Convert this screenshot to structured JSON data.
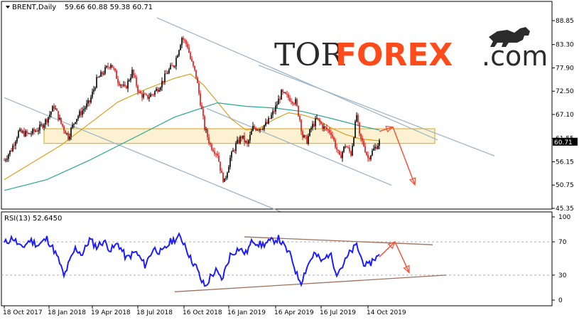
{
  "logo": {
    "part1": "TOR",
    "part2": "FOREX",
    "part3": ".com",
    "icon": "bull-icon"
  },
  "chart_data": [
    {
      "type": "candlestick",
      "title": "BRENT,Daily",
      "ohlc_text": "59.66 60.88 59.38 60.71",
      "current_price": "60.71",
      "y_ticks": [
        "88.85",
        "83.30",
        "77.90",
        "72.50",
        "67.10",
        "61.55",
        "56.15",
        "50.75",
        "45.35"
      ],
      "ylim": [
        45.35,
        90.0
      ],
      "x_ticks": [
        "18 Oct 2017",
        "18 Jan 2018",
        "19 Apr 2018",
        "18 Jul 2018",
        "16 Oct 2018",
        "16 Jan 2019",
        "16 Apr 2019",
        "16 Jul 2019",
        "14 Oct 2019"
      ],
      "close_path": [
        [
          0,
          56.5
        ],
        [
          10,
          59
        ],
        [
          20,
          63
        ],
        [
          35,
          62.5
        ],
        [
          50,
          64
        ],
        [
          60,
          66
        ],
        [
          70,
          69
        ],
        [
          80,
          65
        ],
        [
          90,
          62
        ],
        [
          100,
          66
        ],
        [
          110,
          68
        ],
        [
          120,
          70
        ],
        [
          130,
          75
        ],
        [
          140,
          77
        ],
        [
          150,
          79
        ],
        [
          160,
          75
        ],
        [
          170,
          73
        ],
        [
          180,
          77
        ],
        [
          190,
          72
        ],
        [
          200,
          71
        ],
        [
          210,
          72
        ],
        [
          220,
          74
        ],
        [
          230,
          77
        ],
        [
          240,
          79
        ],
        [
          250,
          85
        ],
        [
          258,
          83
        ],
        [
          262,
          80
        ],
        [
          270,
          76
        ],
        [
          276,
          70
        ],
        [
          282,
          64
        ],
        [
          290,
          60
        ],
        [
          300,
          58
        ],
        [
          306,
          53
        ],
        [
          310,
          51.5
        ],
        [
          318,
          57
        ],
        [
          326,
          60
        ],
        [
          334,
          62
        ],
        [
          342,
          60
        ],
        [
          350,
          64
        ],
        [
          360,
          64
        ],
        [
          370,
          65
        ],
        [
          380,
          68
        ],
        [
          390,
          72
        ],
        [
          400,
          71
        ],
        [
          410,
          70
        ],
        [
          416,
          66
        ],
        [
          420,
          62
        ],
        [
          426,
          61
        ],
        [
          432,
          64
        ],
        [
          440,
          66
        ],
        [
          450,
          64
        ],
        [
          460,
          63
        ],
        [
          466,
          60
        ],
        [
          472,
          57
        ],
        [
          480,
          60
        ],
        [
          488,
          58
        ],
        [
          496,
          67
        ],
        [
          500,
          62
        ],
        [
          506,
          60
        ],
        [
          512,
          57
        ],
        [
          520,
          59
        ],
        [
          528,
          60.7
        ]
      ],
      "moving_averages": [
        {
          "color": "#d9a020",
          "path": [
            [
              0,
              52
            ],
            [
              40,
              56
            ],
            [
              80,
              60
            ],
            [
              120,
              65
            ],
            [
              160,
              70
            ],
            [
              200,
              73
            ],
            [
              240,
              75.5
            ],
            [
              262,
              76.5
            ],
            [
              280,
              74
            ],
            [
              300,
              70
            ],
            [
              320,
              66
            ],
            [
              340,
              63.5
            ],
            [
              360,
              64
            ],
            [
              380,
              66
            ],
            [
              400,
              67.5
            ],
            [
              420,
              67
            ],
            [
              440,
              66
            ],
            [
              460,
              64
            ],
            [
              480,
              62.5
            ],
            [
              500,
              61.5
            ],
            [
              528,
              61
            ]
          ]
        },
        {
          "color": "#2aa896",
          "path": [
            [
              0,
              49.5
            ],
            [
              60,
              52
            ],
            [
              120,
              56.5
            ],
            [
              180,
              61.5
            ],
            [
              240,
              66.5
            ],
            [
              300,
              69.8
            ],
            [
              340,
              69
            ],
            [
              380,
              68.6
            ],
            [
              420,
              67.8
            ],
            [
              460,
              66.2
            ],
            [
              500,
              64.5
            ],
            [
              528,
              63.5
            ]
          ]
        }
      ],
      "zone": {
        "low": 60.4,
        "high": 63.8,
        "x_start": 56,
        "x_end": 606
      },
      "channels": [
        {
          "from": [
            0,
            71
          ],
          "to": [
            390,
            44.5
          ]
        },
        {
          "from": [
            215,
            89.5
          ],
          "to": [
            610,
            61.2
          ]
        },
        {
          "from": [
            285,
            68.5
          ],
          "to": [
            545,
            50.7
          ]
        },
        {
          "from": [
            358,
            78.5
          ],
          "to": [
            690,
            57.5
          ]
        }
      ],
      "forecast": [
        {
          "from": [
            528,
            63.2
          ],
          "to": [
            547,
            64.2
          ]
        },
        {
          "from": [
            547,
            64.2
          ],
          "to": [
            578,
            50.8
          ]
        }
      ]
    },
    {
      "type": "line",
      "title": "RSI(13) 52.6450",
      "y_ticks": [
        "100",
        "70",
        "30",
        "0"
      ],
      "ylim": [
        0,
        100
      ],
      "levels": [
        70,
        30
      ],
      "path": [
        [
          0,
          68
        ],
        [
          12,
          75
        ],
        [
          24,
          62
        ],
        [
          36,
          72
        ],
        [
          48,
          66
        ],
        [
          60,
          74
        ],
        [
          70,
          60
        ],
        [
          78,
          45
        ],
        [
          84,
          28
        ],
        [
          90,
          42
        ],
        [
          100,
          62
        ],
        [
          110,
          55
        ],
        [
          120,
          73
        ],
        [
          130,
          64
        ],
        [
          140,
          71
        ],
        [
          150,
          60
        ],
        [
          160,
          68
        ],
        [
          172,
          50
        ],
        [
          185,
          58
        ],
        [
          198,
          42
        ],
        [
          210,
          62
        ],
        [
          222,
          57
        ],
        [
          234,
          70
        ],
        [
          246,
          76
        ],
        [
          254,
          68
        ],
        [
          262,
          50
        ],
        [
          270,
          40
        ],
        [
          278,
          22
        ],
        [
          284,
          16
        ],
        [
          290,
          28
        ],
        [
          298,
          35
        ],
        [
          306,
          24
        ],
        [
          318,
          54
        ],
        [
          330,
          62
        ],
        [
          340,
          56
        ],
        [
          350,
          72
        ],
        [
          362,
          66
        ],
        [
          374,
          70
        ],
        [
          386,
          74
        ],
        [
          396,
          62
        ],
        [
          404,
          52
        ],
        [
          412,
          30
        ],
        [
          418,
          22
        ],
        [
          426,
          40
        ],
        [
          436,
          56
        ],
        [
          448,
          46
        ],
        [
          458,
          57
        ],
        [
          468,
          33
        ],
        [
          476,
          41
        ],
        [
          486,
          56
        ],
        [
          496,
          66
        ],
        [
          504,
          47
        ],
        [
          512,
          40
        ],
        [
          520,
          50
        ],
        [
          528,
          52.6
        ]
      ],
      "trendlines": [
        {
          "from": [
            240,
            10
          ],
          "to": [
            622,
            30
          ]
        },
        {
          "from": [
            338,
            76
          ],
          "to": [
            603,
            66.5
          ]
        }
      ],
      "forecast": [
        {
          "from": [
            528,
            52
          ],
          "to": [
            550,
            70
          ]
        },
        {
          "from": [
            550,
            70
          ],
          "to": [
            570,
            33
          ]
        }
      ]
    }
  ]
}
